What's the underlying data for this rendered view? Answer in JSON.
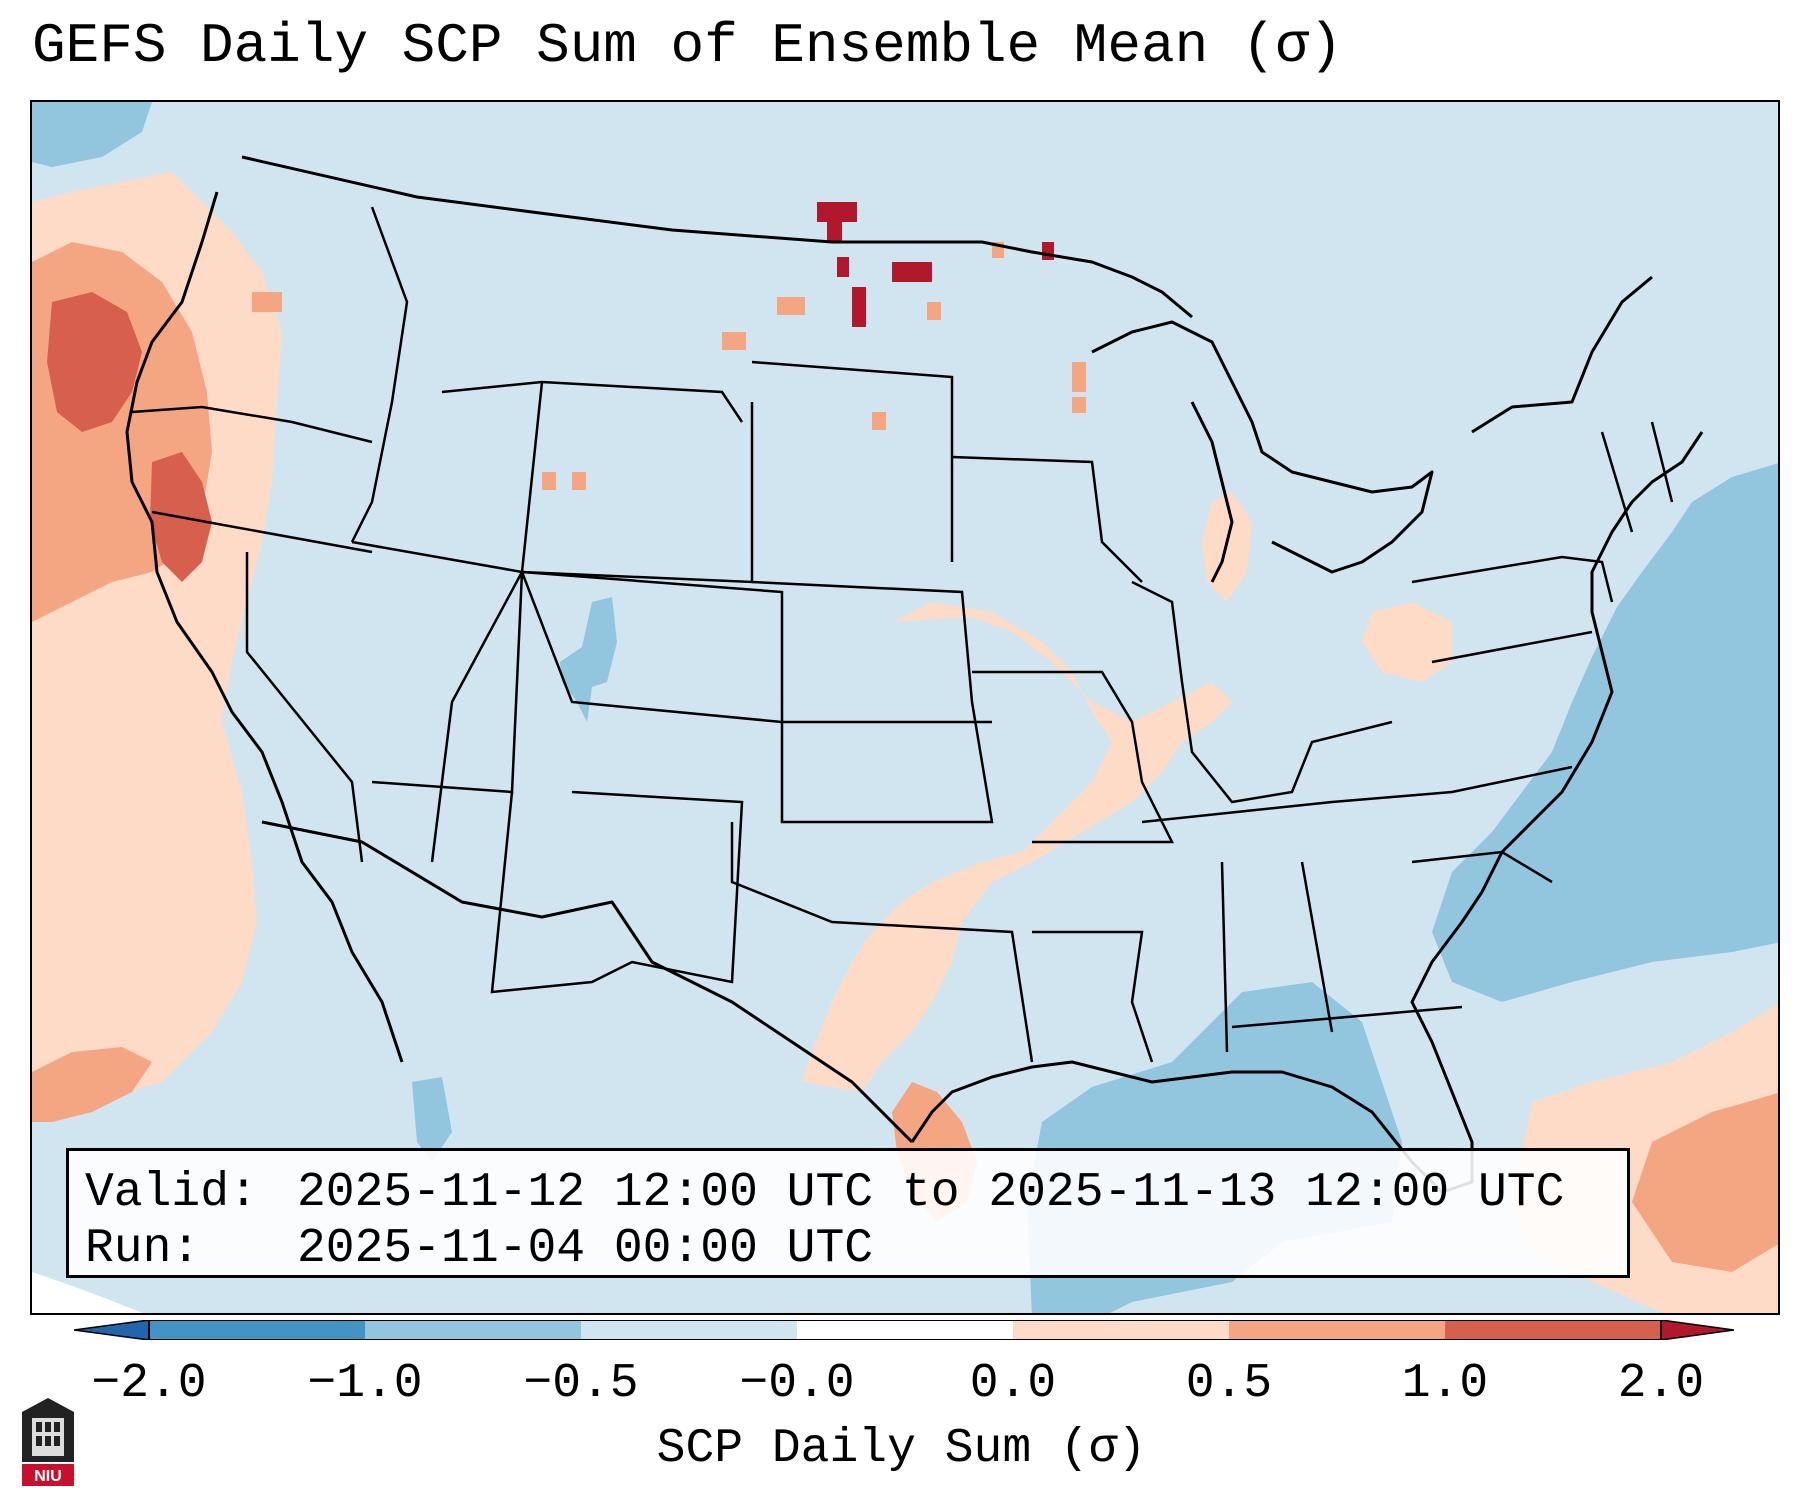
{
  "title": "GEFS Daily SCP Sum of Ensemble Mean (σ)",
  "info": {
    "valid_label": "Valid:",
    "valid_value": "2025-11-12 12:00 UTC to 2025-11-13 12:00 UTC",
    "run_label": "Run:",
    "run_value": "2025-11-04 00:00 UTC"
  },
  "colorbar": {
    "label": "SCP Daily Sum (σ)",
    "ticks": [
      "−2.0",
      "−1.0",
      "−0.5",
      "−0.0",
      "0.0",
      "0.5",
      "1.0",
      "2.0"
    ],
    "colors": [
      "#4393c3",
      "#92c5de",
      "#d1e5f0",
      "#ffffff",
      "#fddbc7",
      "#f4a582",
      "#d6604d",
      "#b2182b"
    ]
  },
  "colors": {
    "background_field": "#d1e5f0",
    "neg_moderate": "#92c5de",
    "pos_light": "#fddbc7",
    "pos_moderate": "#f4a582",
    "pos_strong": "#d6604d",
    "pos_extreme": "#b2182b"
  },
  "logo": {
    "text": "NIU",
    "icon": "niu-logo-icon"
  }
}
